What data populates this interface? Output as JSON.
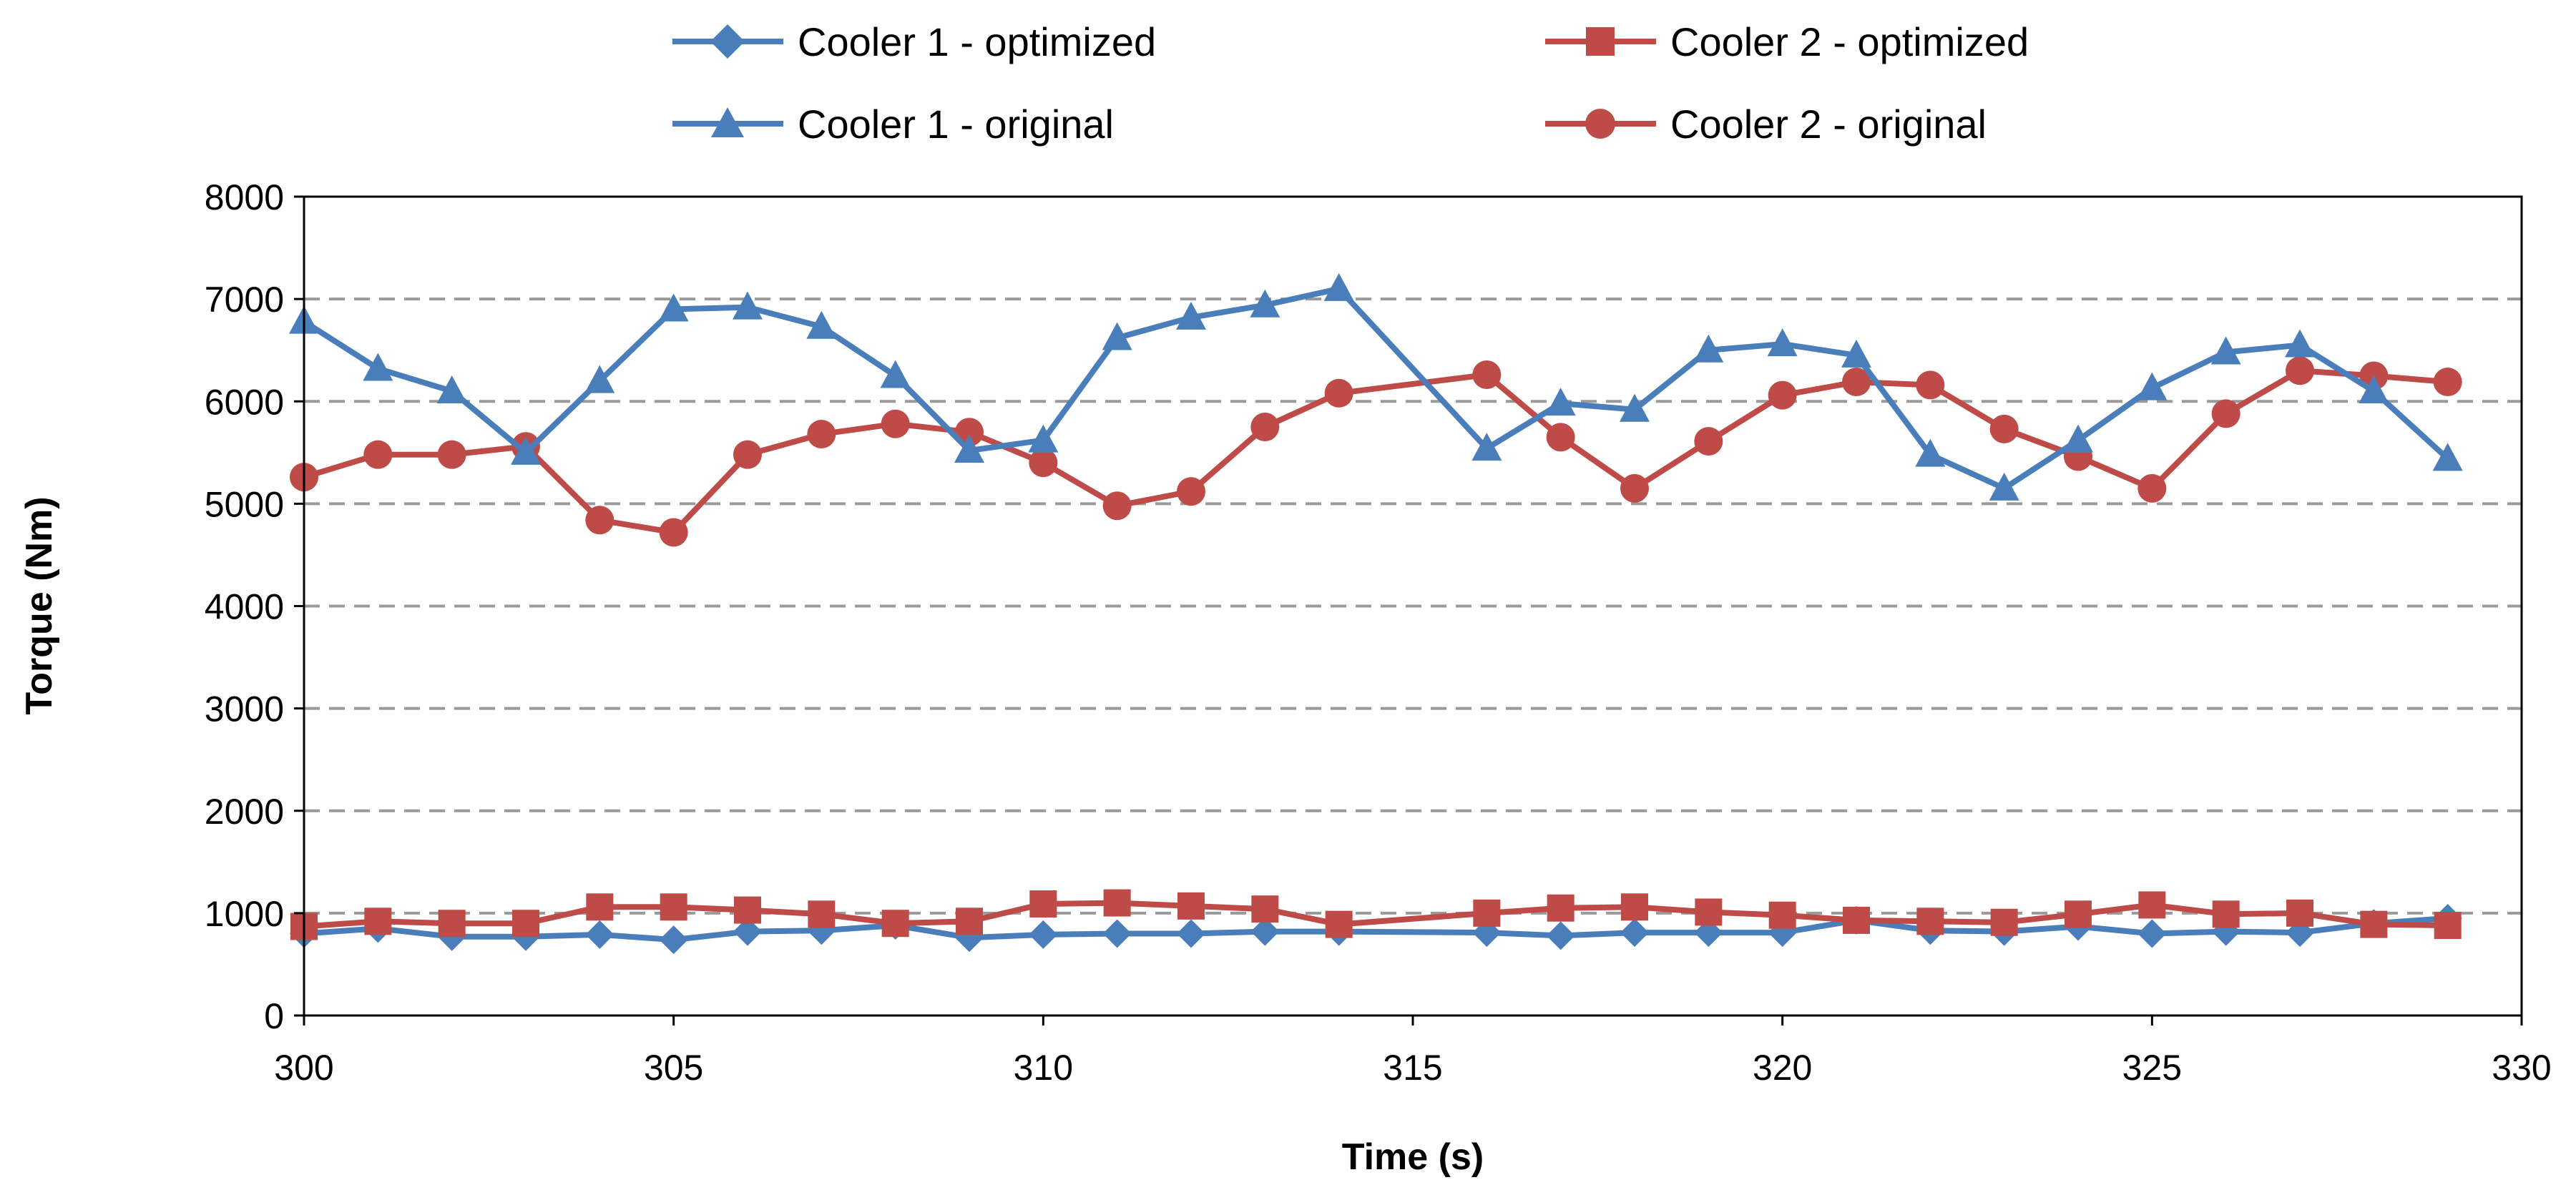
{
  "chart_data": {
    "type": "line",
    "xlabel": "Time (s)",
    "ylabel": "Torque (Nm)",
    "xlim": [
      300,
      330
    ],
    "ylim": [
      0,
      8000
    ],
    "xticks": [
      300,
      305,
      310,
      315,
      320,
      325,
      330
    ],
    "yticks": [
      0,
      1000,
      2000,
      3000,
      4000,
      5000,
      6000,
      7000,
      8000
    ],
    "grid": "horizontal dashed",
    "legend_position": "top",
    "series": [
      {
        "name": "Cooler 1 - optimized",
        "color": "#4a7ebb",
        "marker": "diamond",
        "x": [
          300,
          301,
          302,
          303,
          304,
          305,
          306,
          307,
          308,
          309,
          310,
          311,
          312,
          313,
          314,
          316,
          317,
          318,
          319,
          320,
          321,
          322,
          323,
          324,
          325,
          326,
          327,
          328,
          329
        ],
        "y": [
          800,
          850,
          770,
          770,
          790,
          740,
          820,
          830,
          880,
          760,
          790,
          800,
          800,
          820,
          820,
          810,
          780,
          810,
          810,
          810,
          930,
          830,
          820,
          870,
          800,
          820,
          810,
          900,
          950
        ]
      },
      {
        "name": "Cooler 2 - optimized",
        "color": "#be4b48",
        "marker": "square",
        "x": [
          300,
          301,
          302,
          303,
          304,
          305,
          306,
          307,
          308,
          309,
          310,
          311,
          312,
          313,
          314,
          316,
          317,
          318,
          319,
          320,
          321,
          322,
          323,
          324,
          325,
          326,
          327,
          328,
          329
        ],
        "y": [
          870,
          920,
          900,
          900,
          1060,
          1060,
          1030,
          990,
          900,
          920,
          1090,
          1100,
          1070,
          1040,
          890,
          1000,
          1050,
          1060,
          1010,
          980,
          930,
          920,
          910,
          990,
          1080,
          990,
          1000,
          890,
          880
        ]
      },
      {
        "name": "Cooler 1 - original",
        "color": "#4a7ebb",
        "marker": "triangle",
        "x": [
          300,
          301,
          302,
          303,
          304,
          305,
          306,
          307,
          308,
          309,
          310,
          311,
          312,
          313,
          314,
          316,
          317,
          318,
          319,
          320,
          321,
          322,
          323,
          324,
          325,
          326,
          327,
          328,
          329
        ],
        "y": [
          6780,
          6320,
          6100,
          5500,
          6200,
          6900,
          6920,
          6730,
          6250,
          5520,
          5620,
          6620,
          6820,
          6940,
          7100,
          5540,
          5980,
          5920,
          6500,
          6560,
          6450,
          5480,
          5150,
          5620,
          6130,
          6480,
          6550,
          6100,
          5440
        ]
      },
      {
        "name": "Cooler 2 - original",
        "color": "#be4b48",
        "marker": "circle",
        "x": [
          300,
          301,
          302,
          303,
          304,
          305,
          306,
          307,
          308,
          309,
          310,
          311,
          312,
          313,
          314,
          316,
          317,
          318,
          319,
          320,
          321,
          322,
          323,
          324,
          325,
          326,
          327,
          328,
          329
        ],
        "y": [
          5260,
          5480,
          5480,
          5560,
          4840,
          4720,
          5480,
          5680,
          5780,
          5700,
          5400,
          4980,
          5120,
          5750,
          6080,
          6260,
          5650,
          5150,
          5610,
          6060,
          6190,
          6160,
          5730,
          5460,
          5150,
          5880,
          6300,
          6250,
          6190
        ]
      }
    ]
  }
}
